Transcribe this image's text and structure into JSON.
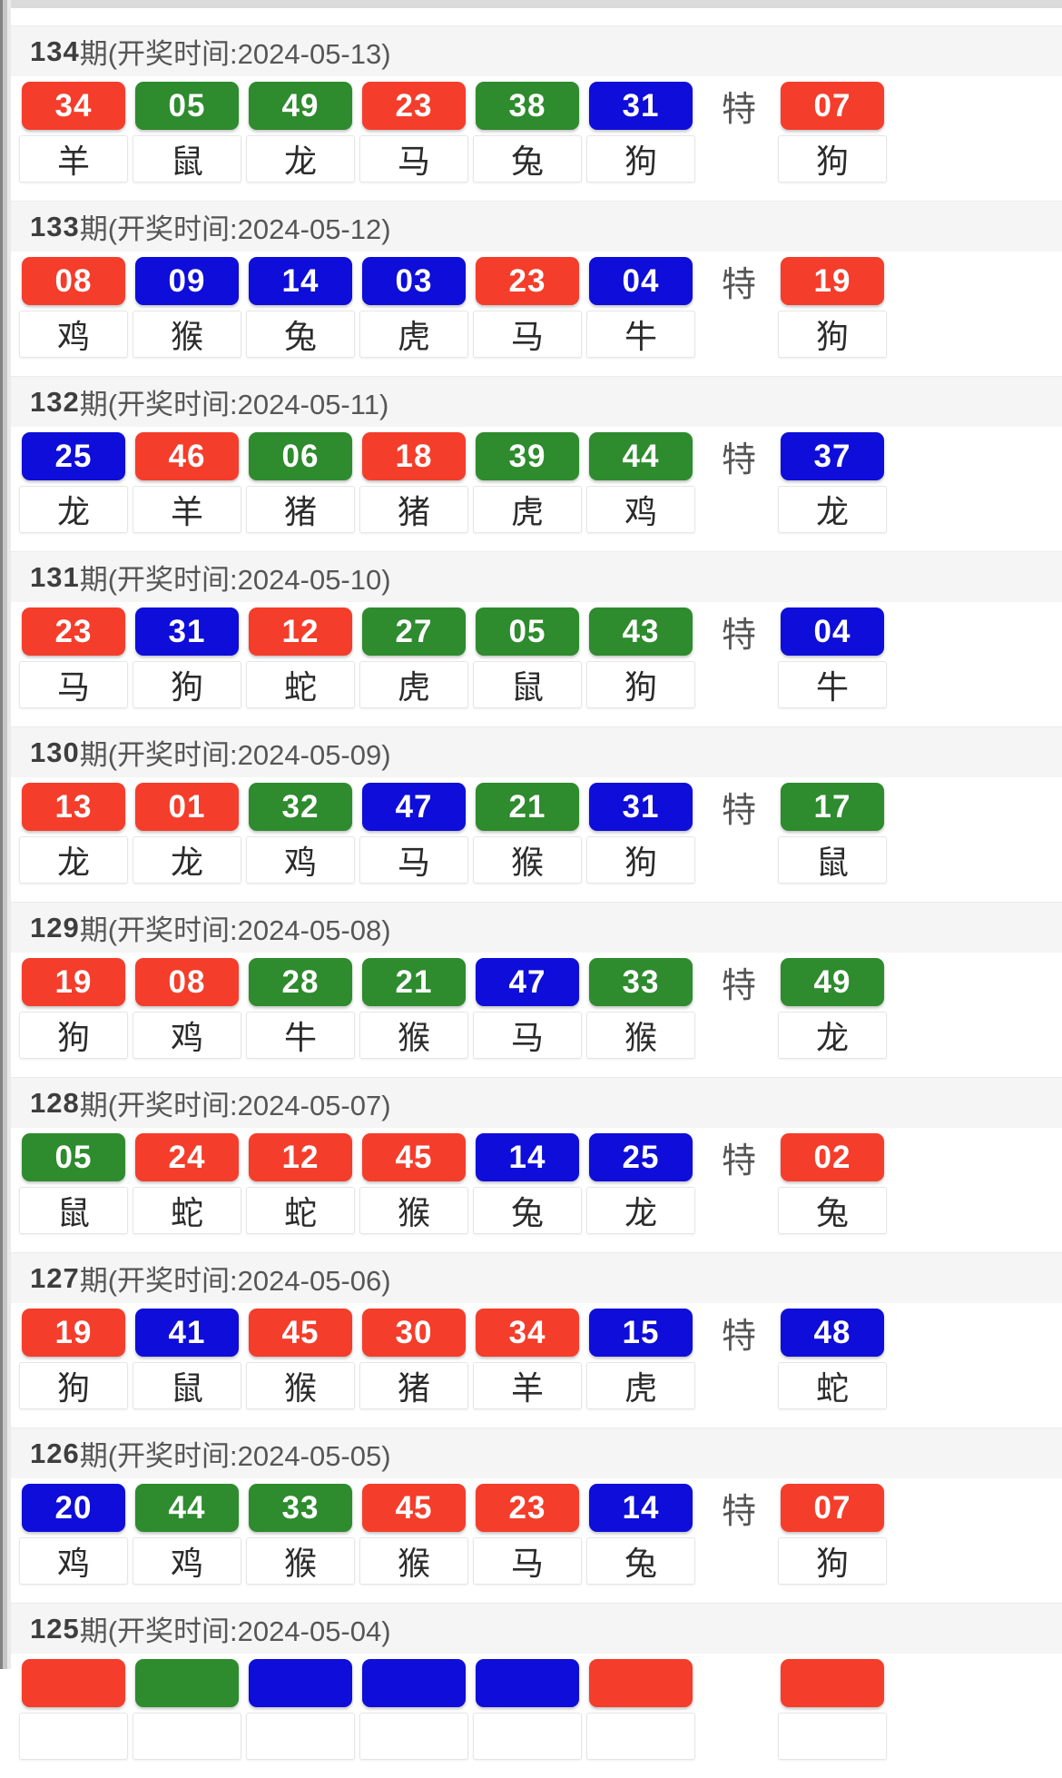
{
  "page": {
    "special_marker": "特"
  },
  "colors": {
    "red": "#f53d2b",
    "green": "#2e8b2e",
    "blue": "#0e0dd9"
  },
  "periods": [
    {
      "period": "134",
      "title_suffix": "期(开奖时间:2024-05-13)",
      "numbers": [
        {
          "value": "34",
          "color": "red",
          "zodiac": "羊"
        },
        {
          "value": "05",
          "color": "green",
          "zodiac": "鼠"
        },
        {
          "value": "49",
          "color": "green",
          "zodiac": "龙"
        },
        {
          "value": "23",
          "color": "red",
          "zodiac": "马"
        },
        {
          "value": "38",
          "color": "green",
          "zodiac": "兔"
        },
        {
          "value": "31",
          "color": "blue",
          "zodiac": "狗"
        }
      ],
      "special": {
        "value": "07",
        "color": "red",
        "zodiac": "狗"
      }
    },
    {
      "period": "133",
      "title_suffix": "期(开奖时间:2024-05-12)",
      "numbers": [
        {
          "value": "08",
          "color": "red",
          "zodiac": "鸡"
        },
        {
          "value": "09",
          "color": "blue",
          "zodiac": "猴"
        },
        {
          "value": "14",
          "color": "blue",
          "zodiac": "兔"
        },
        {
          "value": "03",
          "color": "blue",
          "zodiac": "虎"
        },
        {
          "value": "23",
          "color": "red",
          "zodiac": "马"
        },
        {
          "value": "04",
          "color": "blue",
          "zodiac": "牛"
        }
      ],
      "special": {
        "value": "19",
        "color": "red",
        "zodiac": "狗"
      }
    },
    {
      "period": "132",
      "title_suffix": "期(开奖时间:2024-05-11)",
      "numbers": [
        {
          "value": "25",
          "color": "blue",
          "zodiac": "龙"
        },
        {
          "value": "46",
          "color": "red",
          "zodiac": "羊"
        },
        {
          "value": "06",
          "color": "green",
          "zodiac": "猪"
        },
        {
          "value": "18",
          "color": "red",
          "zodiac": "猪"
        },
        {
          "value": "39",
          "color": "green",
          "zodiac": "虎"
        },
        {
          "value": "44",
          "color": "green",
          "zodiac": "鸡"
        }
      ],
      "special": {
        "value": "37",
        "color": "blue",
        "zodiac": "龙"
      }
    },
    {
      "period": "131",
      "title_suffix": "期(开奖时间:2024-05-10)",
      "numbers": [
        {
          "value": "23",
          "color": "red",
          "zodiac": "马"
        },
        {
          "value": "31",
          "color": "blue",
          "zodiac": "狗"
        },
        {
          "value": "12",
          "color": "red",
          "zodiac": "蛇"
        },
        {
          "value": "27",
          "color": "green",
          "zodiac": "虎"
        },
        {
          "value": "05",
          "color": "green",
          "zodiac": "鼠"
        },
        {
          "value": "43",
          "color": "green",
          "zodiac": "狗"
        }
      ],
      "special": {
        "value": "04",
        "color": "blue",
        "zodiac": "牛"
      }
    },
    {
      "period": "130",
      "title_suffix": "期(开奖时间:2024-05-09)",
      "numbers": [
        {
          "value": "13",
          "color": "red",
          "zodiac": "龙"
        },
        {
          "value": "01",
          "color": "red",
          "zodiac": "龙"
        },
        {
          "value": "32",
          "color": "green",
          "zodiac": "鸡"
        },
        {
          "value": "47",
          "color": "blue",
          "zodiac": "马"
        },
        {
          "value": "21",
          "color": "green",
          "zodiac": "猴"
        },
        {
          "value": "31",
          "color": "blue",
          "zodiac": "狗"
        }
      ],
      "special": {
        "value": "17",
        "color": "green",
        "zodiac": "鼠"
      }
    },
    {
      "period": "129",
      "title_suffix": "期(开奖时间:2024-05-08)",
      "numbers": [
        {
          "value": "19",
          "color": "red",
          "zodiac": "狗"
        },
        {
          "value": "08",
          "color": "red",
          "zodiac": "鸡"
        },
        {
          "value": "28",
          "color": "green",
          "zodiac": "牛"
        },
        {
          "value": "21",
          "color": "green",
          "zodiac": "猴"
        },
        {
          "value": "47",
          "color": "blue",
          "zodiac": "马"
        },
        {
          "value": "33",
          "color": "green",
          "zodiac": "猴"
        }
      ],
      "special": {
        "value": "49",
        "color": "green",
        "zodiac": "龙"
      }
    },
    {
      "period": "128",
      "title_suffix": "期(开奖时间:2024-05-07)",
      "numbers": [
        {
          "value": "05",
          "color": "green",
          "zodiac": "鼠"
        },
        {
          "value": "24",
          "color": "red",
          "zodiac": "蛇"
        },
        {
          "value": "12",
          "color": "red",
          "zodiac": "蛇"
        },
        {
          "value": "45",
          "color": "red",
          "zodiac": "猴"
        },
        {
          "value": "14",
          "color": "blue",
          "zodiac": "兔"
        },
        {
          "value": "25",
          "color": "blue",
          "zodiac": "龙"
        }
      ],
      "special": {
        "value": "02",
        "color": "red",
        "zodiac": "兔"
      }
    },
    {
      "period": "127",
      "title_suffix": "期(开奖时间:2024-05-06)",
      "numbers": [
        {
          "value": "19",
          "color": "red",
          "zodiac": "狗"
        },
        {
          "value": "41",
          "color": "blue",
          "zodiac": "鼠"
        },
        {
          "value": "45",
          "color": "red",
          "zodiac": "猴"
        },
        {
          "value": "30",
          "color": "red",
          "zodiac": "猪"
        },
        {
          "value": "34",
          "color": "red",
          "zodiac": "羊"
        },
        {
          "value": "15",
          "color": "blue",
          "zodiac": "虎"
        }
      ],
      "special": {
        "value": "48",
        "color": "blue",
        "zodiac": "蛇"
      }
    },
    {
      "period": "126",
      "title_suffix": "期(开奖时间:2024-05-05)",
      "numbers": [
        {
          "value": "20",
          "color": "blue",
          "zodiac": "鸡"
        },
        {
          "value": "44",
          "color": "green",
          "zodiac": "鸡"
        },
        {
          "value": "33",
          "color": "green",
          "zodiac": "猴"
        },
        {
          "value": "45",
          "color": "red",
          "zodiac": "猴"
        },
        {
          "value": "23",
          "color": "red",
          "zodiac": "马"
        },
        {
          "value": "14",
          "color": "blue",
          "zodiac": "兔"
        }
      ],
      "special": {
        "value": "07",
        "color": "red",
        "zodiac": "狗"
      }
    },
    {
      "period": "125",
      "title_suffix": "期(开奖时间:2024-05-04)",
      "numbers": [
        {
          "value": "",
          "color": "red",
          "zodiac": ""
        },
        {
          "value": "",
          "color": "green",
          "zodiac": ""
        },
        {
          "value": "",
          "color": "blue",
          "zodiac": ""
        },
        {
          "value": "",
          "color": "blue",
          "zodiac": ""
        },
        {
          "value": "",
          "color": "blue",
          "zodiac": ""
        },
        {
          "value": "",
          "color": "red",
          "zodiac": ""
        }
      ],
      "special": {
        "value": "",
        "color": "red",
        "zodiac": ""
      }
    }
  ]
}
